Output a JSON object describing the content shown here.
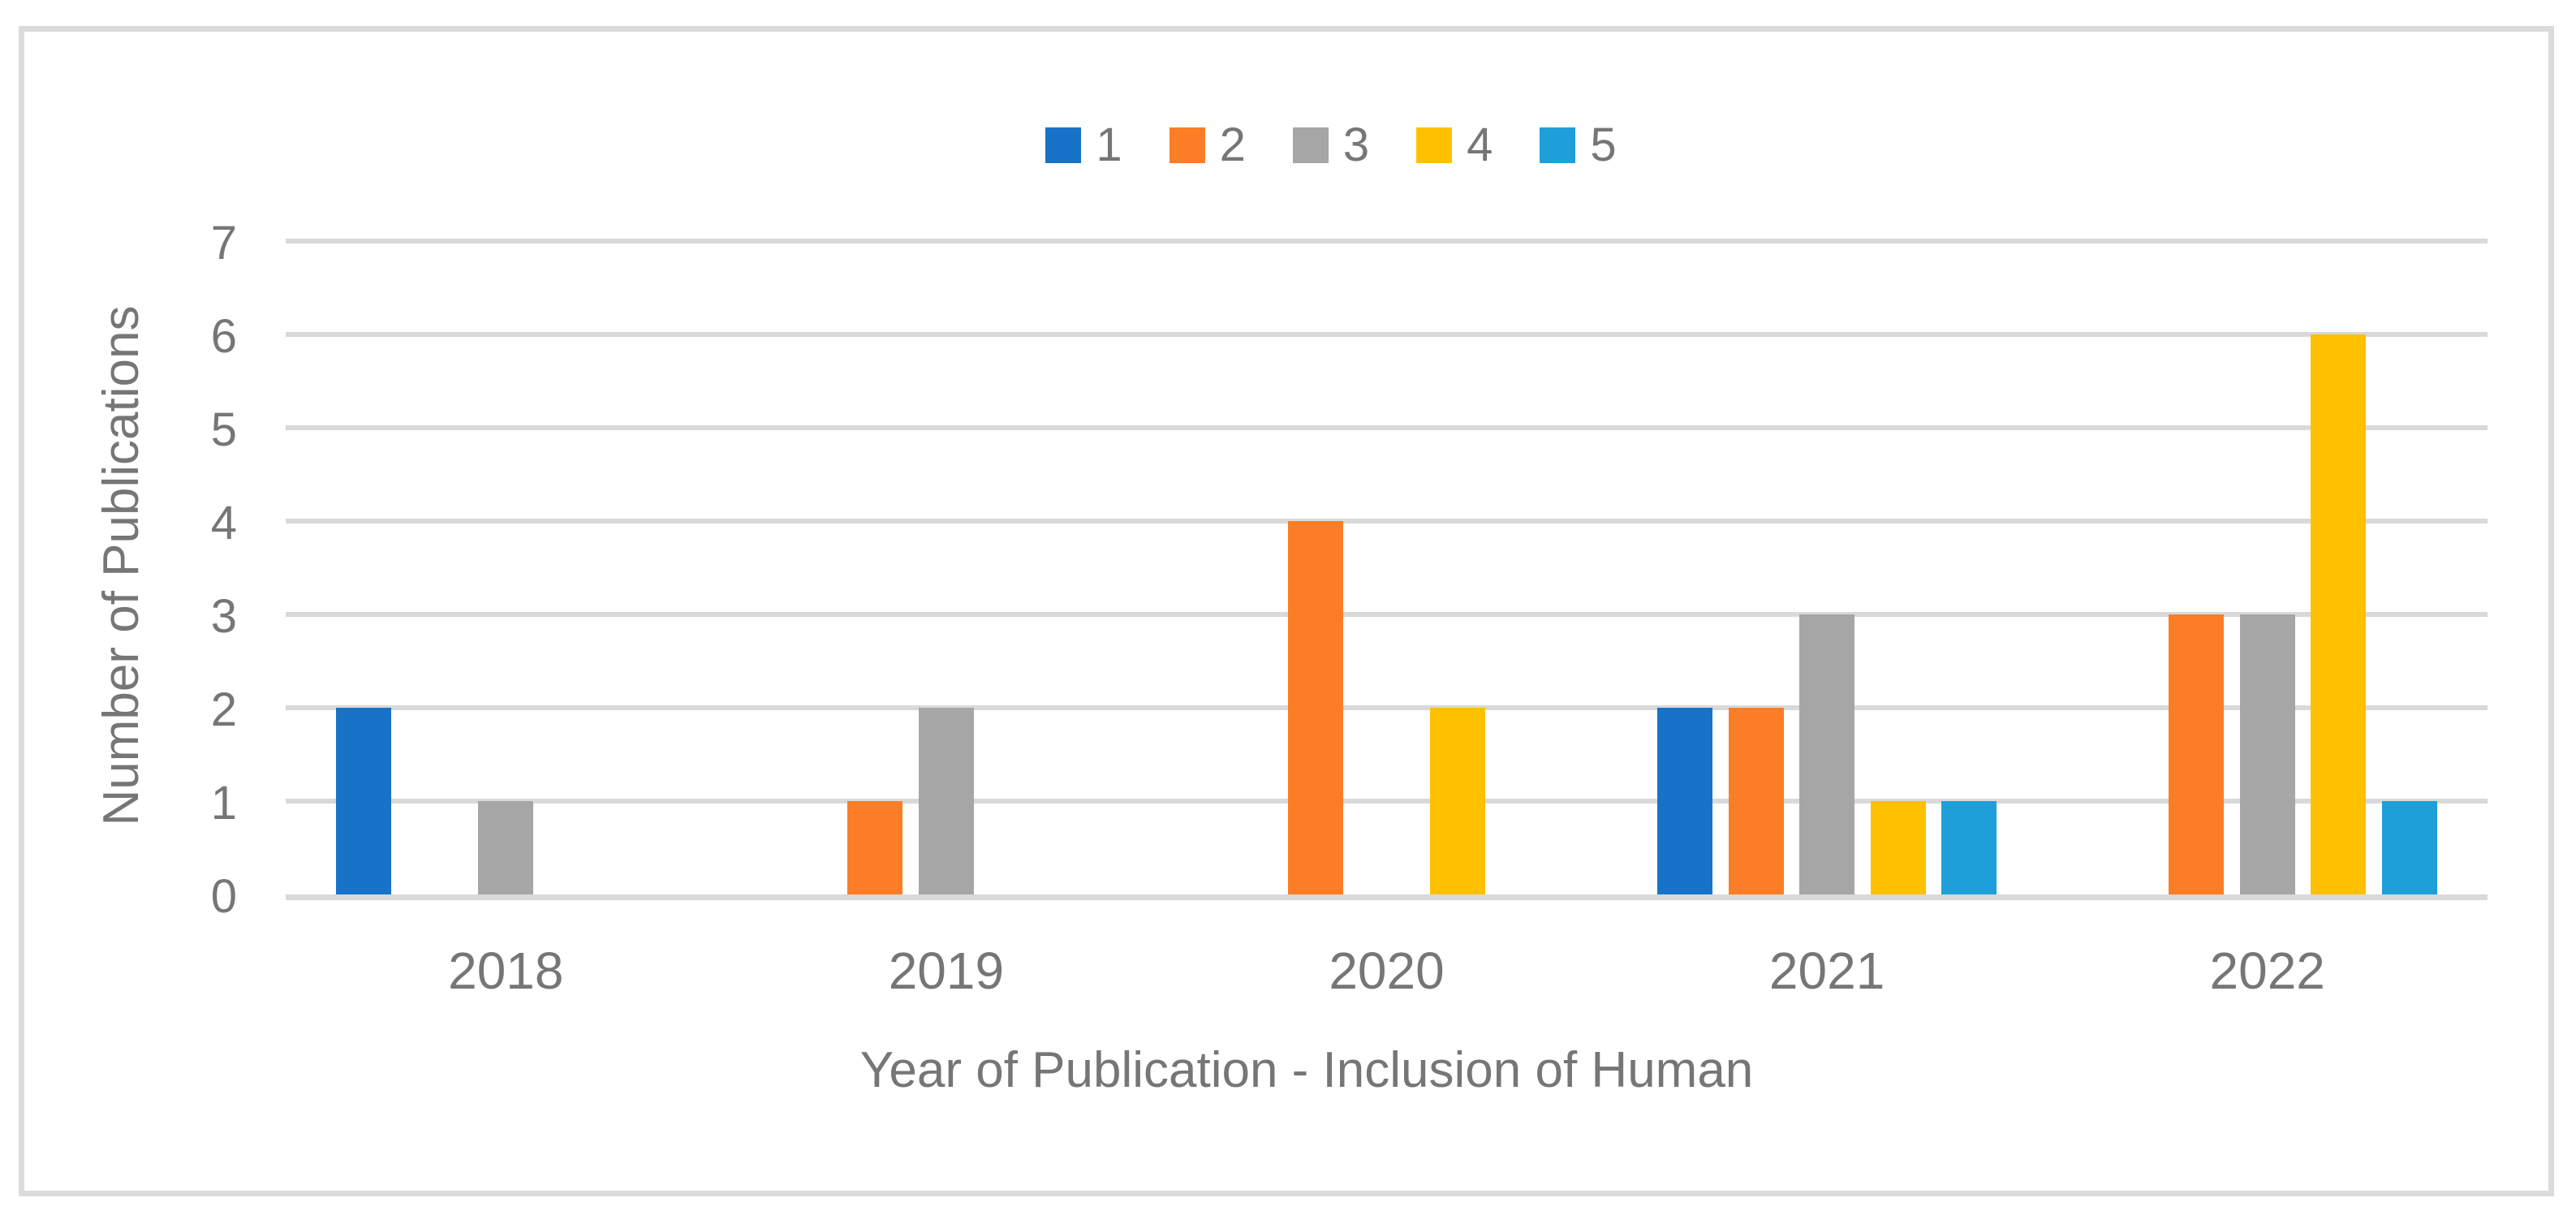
{
  "chart_data": {
    "type": "bar",
    "title": "",
    "xlabel": "Year of Publication - Inclusion of Human",
    "ylabel": "Number of Publications",
    "categories": [
      "2018",
      "2019",
      "2020",
      "2021",
      "2022"
    ],
    "series": [
      {
        "name": "1",
        "color": "#1873C8",
        "values": [
          2,
          0,
          0,
          2,
          0
        ]
      },
      {
        "name": "2",
        "color": "#FB7D26",
        "values": [
          0,
          1,
          4,
          2,
          3
        ]
      },
      {
        "name": "3",
        "color": "#A6A6A6",
        "values": [
          1,
          2,
          0,
          3,
          3
        ]
      },
      {
        "name": "4",
        "color": "#FFC000",
        "values": [
          0,
          0,
          2,
          1,
          6
        ]
      },
      {
        "name": "5",
        "color": "#1E9FDA",
        "values": [
          0,
          0,
          0,
          1,
          1
        ]
      }
    ],
    "y_ticks": [
      0,
      1,
      2,
      3,
      4,
      5,
      6,
      7
    ],
    "ylim": [
      0,
      7
    ],
    "legend_position": "top",
    "grid": "horizontal",
    "colors": {
      "gridline": "#D9D9D9",
      "axis_line": "#D9D9D9",
      "text": "#767676",
      "frame_border": "#DBDBDB",
      "background": "#FFFFFF"
    }
  }
}
